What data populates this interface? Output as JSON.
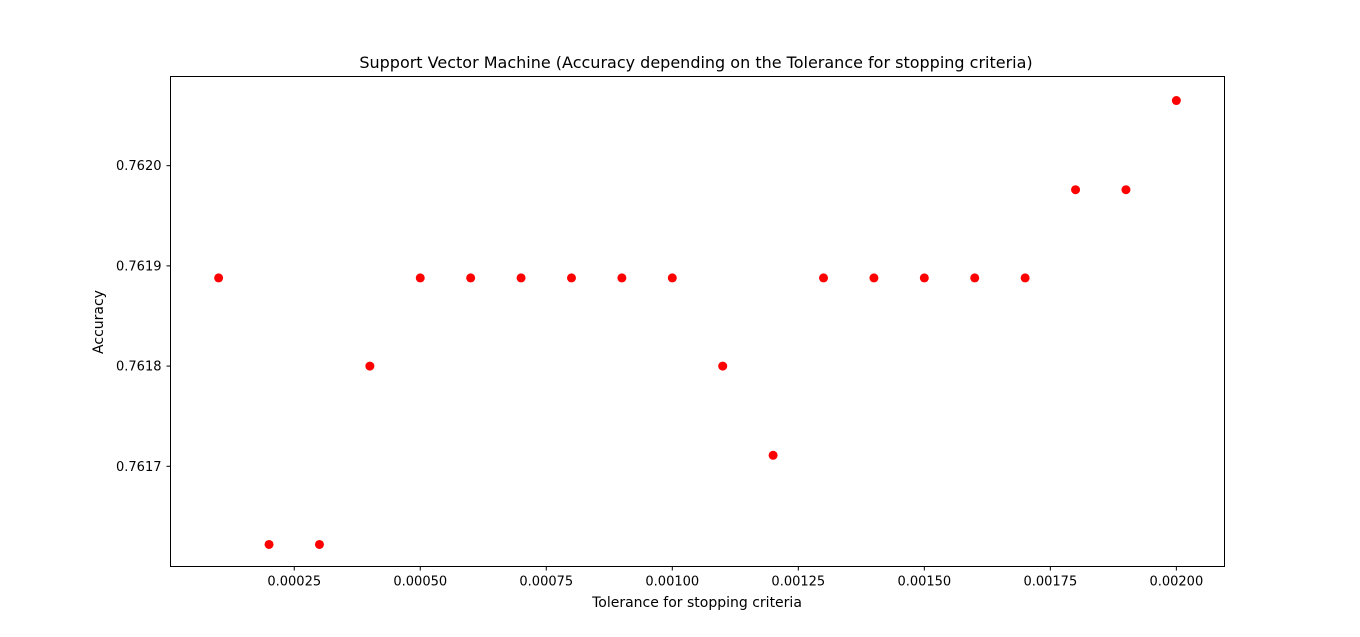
{
  "chart_data": {
    "type": "scatter",
    "title": "Support Vector Machine (Accuracy depending on the Tolerance for stopping criteria)",
    "xlabel": "Tolerance for stopping criteria",
    "ylabel": "Accuracy",
    "xlim": [
      4.5e-06,
      0.0020955
    ],
    "ylim": [
      0.7616,
      0.762089
    ],
    "xticks": [
      0.00025,
      0.0005,
      0.00075,
      0.001,
      0.00125,
      0.0015,
      0.00175,
      0.002
    ],
    "xtick_labels": [
      "0.00025",
      "0.00050",
      "0.00075",
      "0.00100",
      "0.00125",
      "0.00150",
      "0.00175",
      "0.00200"
    ],
    "yticks": [
      0.7617,
      0.7618,
      0.7619,
      0.762
    ],
    "ytick_labels": [
      "0.7617",
      "0.7618",
      "0.7619",
      "0.7620"
    ],
    "grid": false,
    "marker_color": "#ff0000",
    "series": [
      {
        "x": [
          0.0001,
          0.0002,
          0.0003,
          0.0004,
          0.0005,
          0.0006,
          0.0007,
          0.0008,
          0.0009,
          0.001,
          0.0011,
          0.0012,
          0.0013,
          0.0014,
          0.0015,
          0.0016,
          0.0017,
          0.0018,
          0.0019,
          0.002
        ],
        "y": [
          0.761888,
          0.761622,
          0.761622,
          0.7618,
          0.761888,
          0.761888,
          0.761888,
          0.761888,
          0.761888,
          0.761888,
          0.7618,
          0.761711,
          0.761888,
          0.761888,
          0.761888,
          0.761888,
          0.761888,
          0.761976,
          0.761976,
          0.762065
        ]
      }
    ]
  }
}
